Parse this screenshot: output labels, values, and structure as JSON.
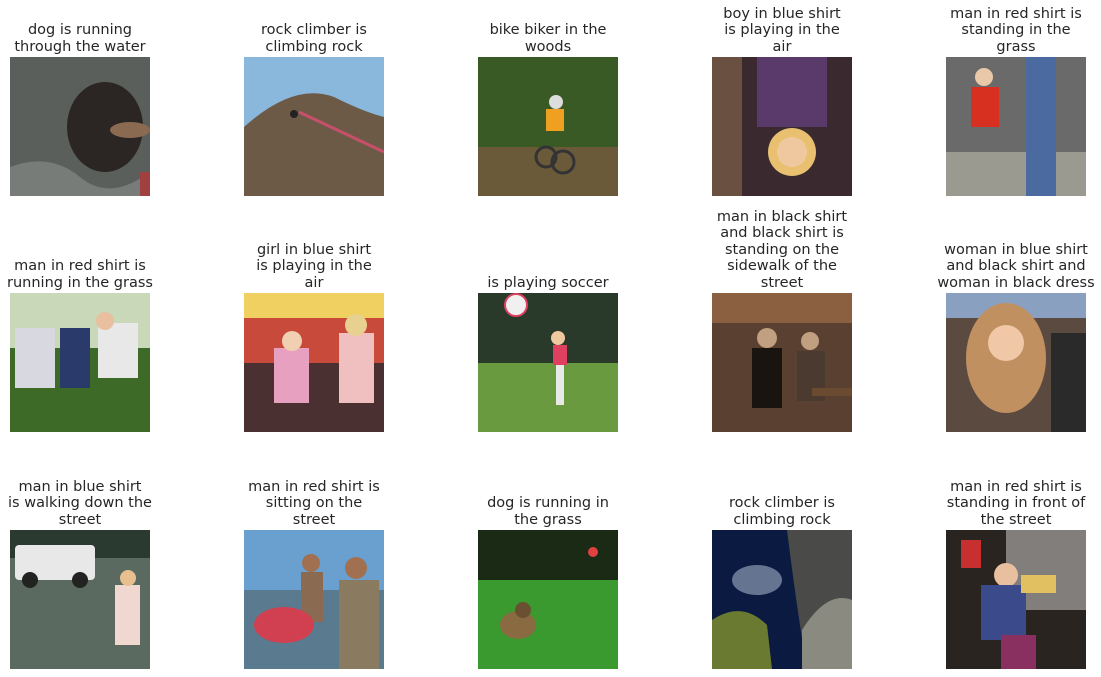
{
  "images": [
    {
      "caption": "dog is running\nthrough the water",
      "scene": "dog-water",
      "colors": [
        "#5a5f5c",
        "#2b2623",
        "#8a8f8c"
      ]
    },
    {
      "caption": "rock climber is\nclimbing rock",
      "scene": "rock-climb",
      "colors": [
        "#8ab7dc",
        "#6c5a47",
        "#c84f6a"
      ]
    },
    {
      "caption": "bike biker in the\nwoods",
      "scene": "bike-woods",
      "colors": [
        "#3a5a25",
        "#6b5a3a",
        "#f0a020"
      ]
    },
    {
      "caption": "boy in blue shirt\nis playing in the\nair",
      "scene": "boy-air",
      "colors": [
        "#3a2a30",
        "#5a3a6a",
        "#e8c070"
      ]
    },
    {
      "caption": "man in red shirt is\nstanding in the\ngrass",
      "scene": "red-shirt-grass",
      "colors": [
        "#6a6a6a",
        "#d83020",
        "#4a6aa0"
      ]
    },
    {
      "caption": "man in red shirt is\nrunning in the grass",
      "scene": "soccer-men",
      "colors": [
        "#3e6a28",
        "#e8e8e8",
        "#2a3a6a"
      ]
    },
    {
      "caption": "girl in blue shirt\nis playing in the\nair",
      "scene": "girls-arcade",
      "colors": [
        "#c84a3a",
        "#e8a0c0",
        "#f0d060"
      ]
    },
    {
      "caption": "is playing soccer",
      "scene": "soccer-kid",
      "colors": [
        "#2a3a2a",
        "#6a9a40",
        "#e04060"
      ]
    },
    {
      "caption": "man in black shirt\nand black shirt is\nstanding on the\nsidewalk of the\nstreet",
      "scene": "two-men",
      "colors": [
        "#5a4030",
        "#1a1410",
        "#c0a080"
      ]
    },
    {
      "caption": "woman in blue shirt\nand black shirt and\nwoman in black dress",
      "scene": "woman-hair",
      "colors": [
        "#5a4a40",
        "#c09060",
        "#2a2a2a"
      ]
    },
    {
      "caption": "man in blue shirt\nis walking down the\nstreet",
      "scene": "look-right",
      "colors": [
        "#2a3a30",
        "#e8e8e8",
        "#f0d8d0"
      ]
    },
    {
      "caption": "man in red shirt is\nsitting on the\nstreet",
      "scene": "fair-men",
      "colors": [
        "#6aa0d0",
        "#8a6a50",
        "#d04050"
      ]
    },
    {
      "caption": "dog is running in\nthe grass",
      "scene": "dog-grass",
      "colors": [
        "#1a2a14",
        "#3a9a30",
        "#8a6a40"
      ]
    },
    {
      "caption": "rock climber is\nclimbing rock",
      "scene": "rock-sea",
      "colors": [
        "#0a1a40",
        "#6a7a30",
        "#8a8a80"
      ]
    },
    {
      "caption": "man in red shirt is\nstanding in front of\nthe street",
      "scene": "shop-man",
      "colors": [
        "#2a2420",
        "#3a4a8a",
        "#e0c060"
      ]
    }
  ]
}
